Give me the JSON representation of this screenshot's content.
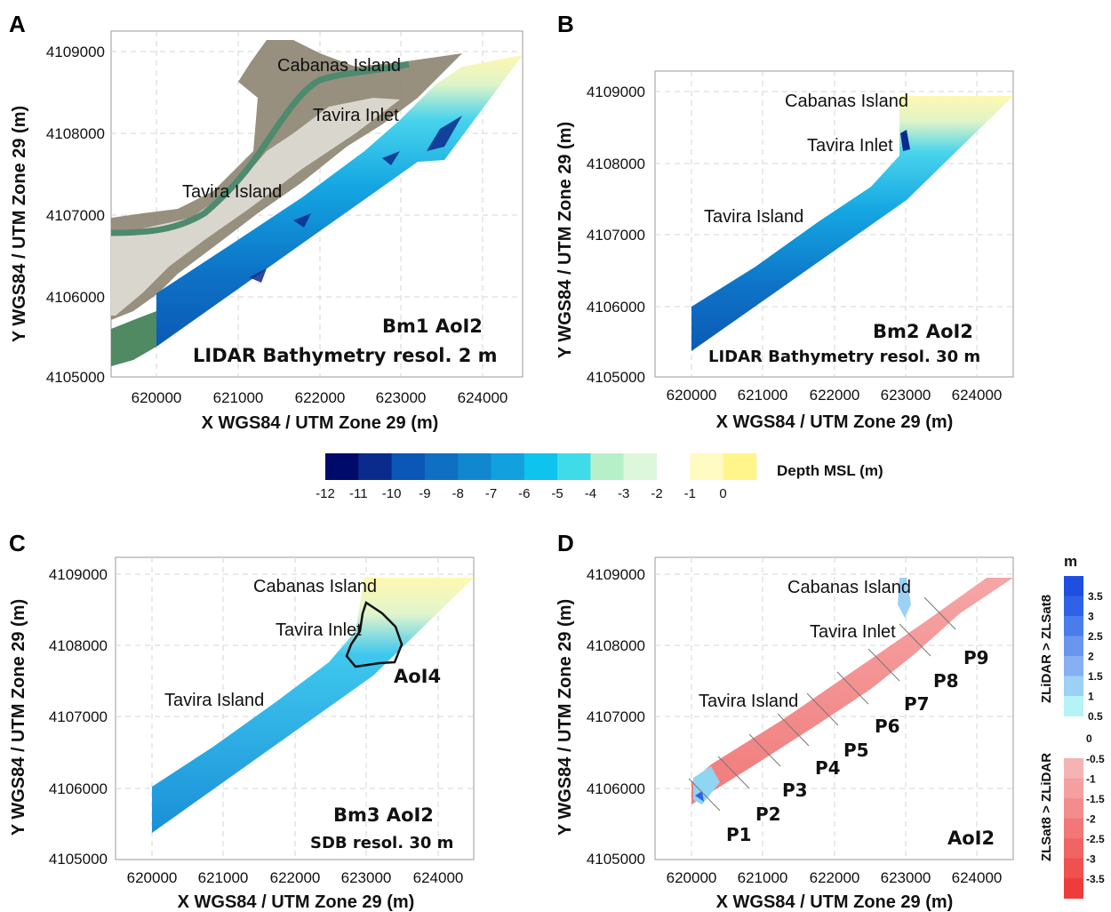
{
  "panels": [
    {
      "letter": "A",
      "places": [
        "Cabanas Island",
        "Tavira Inlet",
        "Tavira Island"
      ],
      "title": "Bm1 AoI2",
      "subtitle": "LIDAR Bathymetry resol. 2 m",
      "x_ticks": [
        "620000",
        "621000",
        "622000",
        "623000",
        "624000"
      ],
      "y_ticks": [
        "4109000",
        "4108000",
        "4107000",
        "4106000",
        "4105000"
      ]
    },
    {
      "letter": "B",
      "places": [
        "Cabanas Island",
        "Tavira Inlet",
        "Tavira Island"
      ],
      "title": "Bm2 AoI2",
      "subtitle": "LIDAR Bathymetry resol. 30 m",
      "x_ticks": [
        "620000",
        "621000",
        "622000",
        "623000",
        "624000"
      ],
      "y_ticks": [
        "4109000",
        "4108000",
        "4107000",
        "4106000",
        "4105000"
      ]
    },
    {
      "letter": "C",
      "places": [
        "Cabanas Island",
        "Tavira Inlet",
        "Tavira Island"
      ],
      "title": "Bm3 AoI2",
      "subtitle": "SDB resol. 30 m",
      "aoi4_label": "AoI4",
      "x_ticks": [
        "620000",
        "621000",
        "622000",
        "623000",
        "624000"
      ],
      "y_ticks": [
        "4109000",
        "4108000",
        "4107000",
        "4106000",
        "4105000"
      ]
    },
    {
      "letter": "D",
      "places": [
        "Cabanas Island",
        "Tavira Inlet",
        "Tavira Island"
      ],
      "title": "AoI2",
      "profiles": [
        "P1",
        "P2",
        "P3",
        "P4",
        "P5",
        "P6",
        "P7",
        "P8",
        "P9"
      ],
      "x_ticks": [
        "620000",
        "621000",
        "622000",
        "623000",
        "624000"
      ],
      "y_ticks": [
        "4109000",
        "4108000",
        "4107000",
        "4106000",
        "4105000"
      ]
    }
  ],
  "axes": {
    "xlabel": "X WGS84 / UTM Zone 29 (m)",
    "ylabel": "Y WGS84 / UTM Zone 29 (m)"
  },
  "depth_legend": {
    "label": "Depth MSL (m)",
    "ticks": [
      "-12",
      "-11",
      "-10",
      "-9",
      "-8",
      "-7",
      "-6",
      "-5",
      "-4",
      "-3",
      "-2",
      "-1",
      "0"
    ],
    "colors": [
      "#000a6a",
      "#0a2a8c",
      "#0b57b8",
      "#0f6fc2",
      "#1187d0",
      "#12a0de",
      "#0fc3ef",
      "#3fdbe9",
      "#b6f0c8",
      "#dcf7dc",
      "#ffffff",
      "#fffbc2",
      "#fff58a"
    ]
  },
  "diff_legend": {
    "unit": "m",
    "positive_label": "ZLiDAR > ZLSat8",
    "negative_label": "ZLSat8 > ZLiDAR",
    "positive_ticks": [
      "3.5",
      "3",
      "2.5",
      "2",
      "1.5",
      "1",
      "0.5"
    ],
    "zero_tick": "0",
    "negative_ticks": [
      "-0.5",
      "-1",
      "-1.5",
      "-2",
      "-2.5",
      "-3",
      "-3.5"
    ],
    "positive_colors": [
      "#1f4fe0",
      "#2f62e6",
      "#4a7deb",
      "#6a96ef",
      "#87aff2",
      "#9cd0f5",
      "#b6f3f7"
    ],
    "negative_colors": [
      "#f6b3b3",
      "#f4a0a0",
      "#f38c8c",
      "#f27878",
      "#f16464",
      "#ef5050",
      "#ee3c3c"
    ]
  }
}
